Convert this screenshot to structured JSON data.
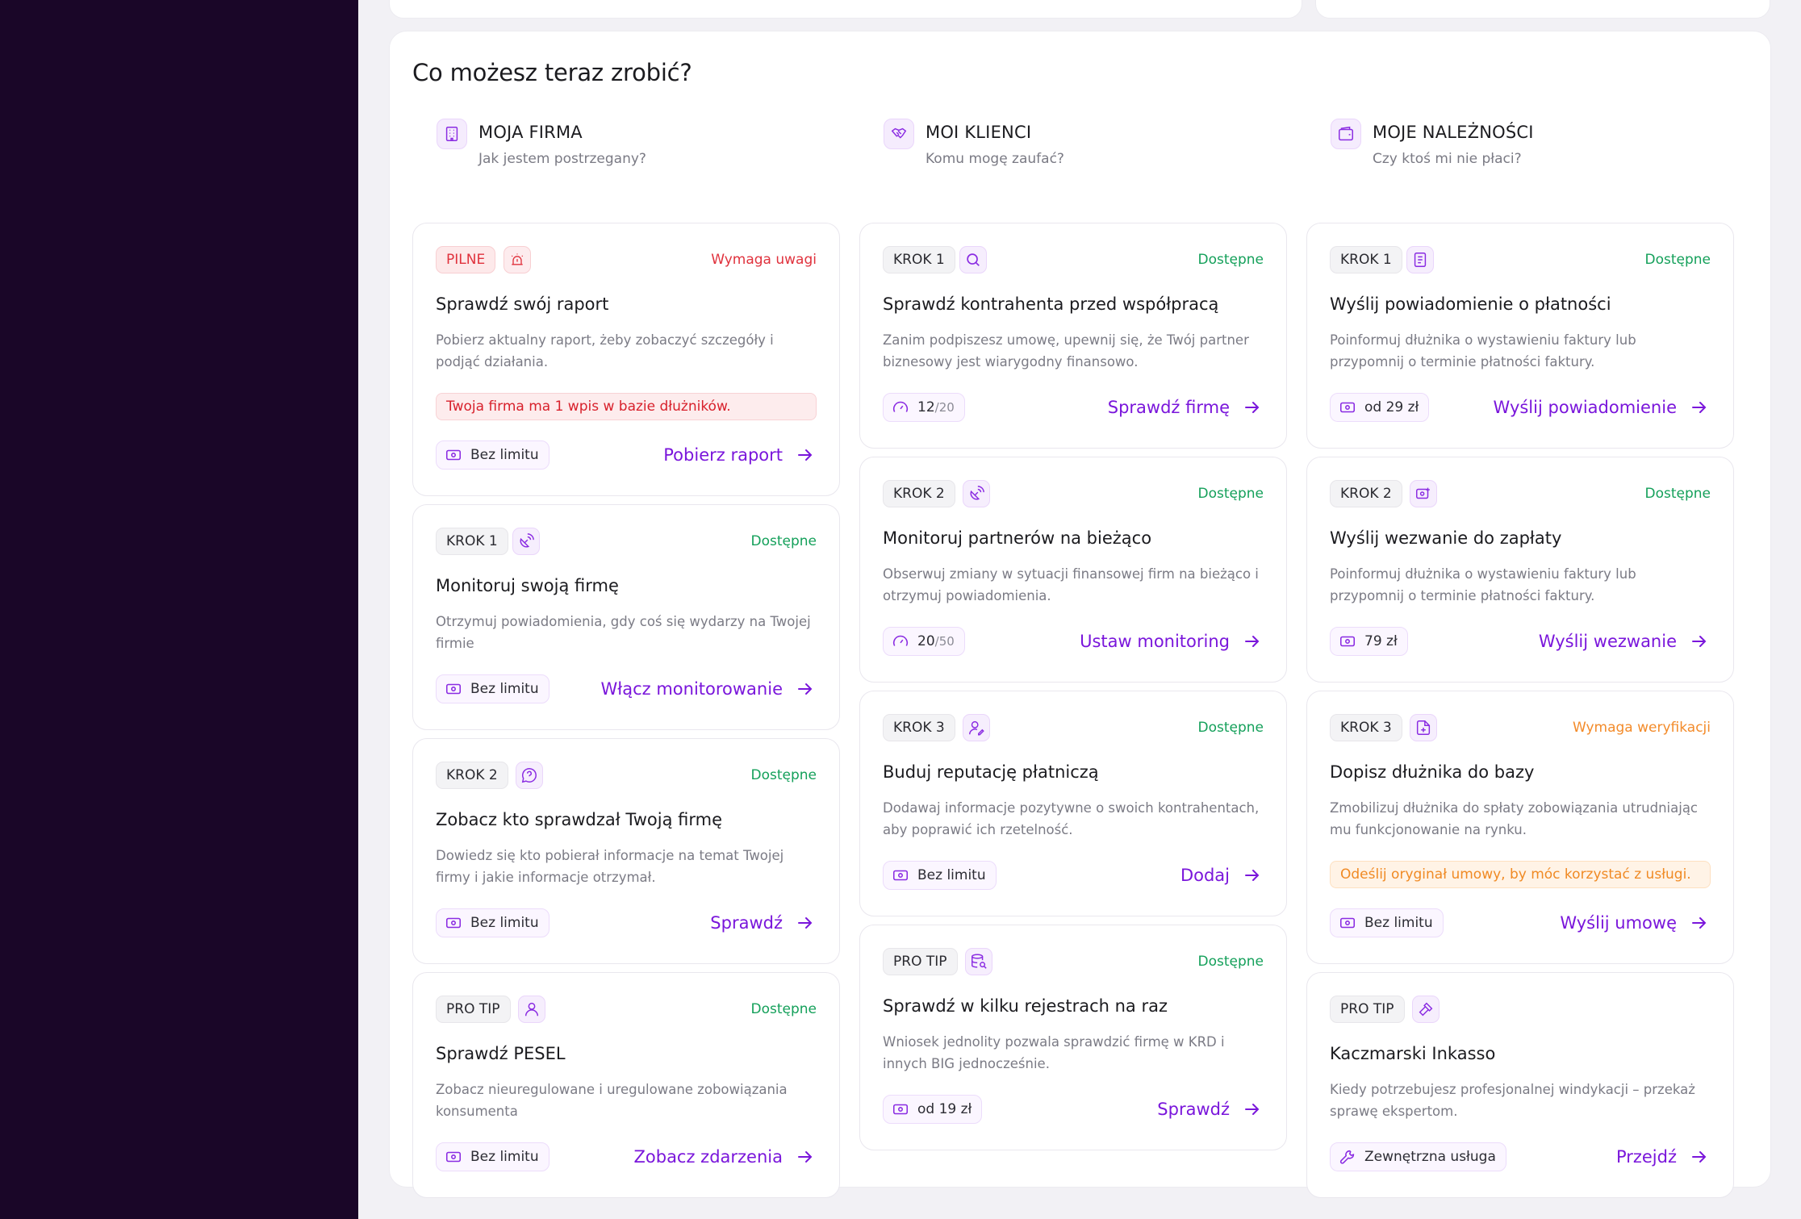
{
  "panel_title": "Co możesz teraz zrobić?",
  "colors": {
    "accent": "#7a16db",
    "green": "#14a05a",
    "red": "#e0323d",
    "orange": "#f38b2a",
    "rail": "#1a0628"
  },
  "columns": [
    {
      "title": "MOJA FIRMA",
      "subtitle": "Jak jestem postrzegany?",
      "icon": "building-icon",
      "cards": [
        {
          "tag": "PILNE",
          "tag_icon": "alarm-icon",
          "status": "Wymaga uwagi",
          "title": "Sprawdź swój raport",
          "desc": "Pobierz aktualny raport, żeby zobaczyć szczegóły i podjąć działania.",
          "alert": "Twoja firma ma 1 wpis w bazie dłużników.",
          "price": "Bez limitu",
          "price_icon": "money-icon",
          "action": "Pobierz raport"
        },
        {
          "tag": "KROK 1",
          "tag_icon": "satellite-dish-icon",
          "status": "Dostępne",
          "title": "Monitoruj swoją firmę",
          "desc": "Otrzymuj powiadomienia, gdy coś się wydarzy na Twojej firmie",
          "price": "Bez limitu",
          "price_icon": "money-icon",
          "action": "Włącz monitorowanie"
        },
        {
          "tag": "KROK 2",
          "tag_icon": "question-bubble-icon",
          "status": "Dostępne",
          "title": "Zobacz kto sprawdzał Twoją firmę",
          "desc": "Dowiedz się kto pobierał informacje na temat Twojej firmy i jakie informacje otrzymał.",
          "price": "Bez limitu",
          "price_icon": "money-icon",
          "action": "Sprawdź"
        },
        {
          "tag": "PRO TIP",
          "tag_icon": "person-icon",
          "status": "Dostępne",
          "title": "Sprawdź PESEL",
          "desc": "Zobacz nieuregulowane i uregulowane zobowiązania konsumenta",
          "price": "Bez limitu",
          "price_icon": "money-icon",
          "action": "Zobacz zdarzenia"
        }
      ]
    },
    {
      "title": "MOI KLIENCI",
      "subtitle": "Komu mogę zaufać?",
      "icon": "handshake-icon",
      "cards": [
        {
          "tag": "KROK 1",
          "tag_icon": "search-icon",
          "status": "Dostępne",
          "title": "Sprawdź kontrahenta przed współpracą",
          "desc": "Zanim podpiszesz umowę, upewnij się, że Twój partner biznesowy jest wiarygodny finansowo.",
          "price": "12",
          "price_suffix": "/20",
          "price_icon": "gauge-icon",
          "action": "Sprawdź firmę"
        },
        {
          "tag": "KROK 2",
          "tag_icon": "satellite-dish-icon",
          "status": "Dostępne",
          "title": "Monitoruj partnerów na bieżąco",
          "desc": "Obserwuj zmiany w sytuacji finansowej firm na bieżąco i otrzymuj powiadomienia.",
          "price": "20",
          "price_suffix": "/50",
          "price_icon": "gauge-icon",
          "action": "Ustaw monitoring"
        },
        {
          "tag": "KROK 3",
          "tag_icon": "user-edit-icon",
          "status": "Dostępne",
          "title": "Buduj reputację płatniczą",
          "desc": "Dodawaj informacje pozytywne o swoich kontrahentach, aby poprawić ich rzetelność.",
          "price": "Bez limitu",
          "price_icon": "money-icon",
          "action": "Dodaj"
        },
        {
          "tag": "PRO TIP",
          "tag_icon": "database-search-icon",
          "status": "Dostępne",
          "title": "Sprawdź w kilku rejestrach na raz",
          "desc": "Wniosek jednolity pozwala sprawdzić firmę w KRD i innych BIG jednocześnie.",
          "price": "od 19 zł",
          "price_icon": "money-icon",
          "action": "Sprawdź"
        }
      ]
    },
    {
      "title": "MOJE NALEŻNOŚCI",
      "subtitle": "Czy ktoś mi nie płaci?",
      "icon": "wallet-icon",
      "cards": [
        {
          "tag": "KROK 1",
          "tag_icon": "document-icon",
          "status": "Dostępne",
          "title": "Wyślij powiadomienie o płatności",
          "desc": "Poinformuj dłużnika o wystawieniu faktury lub przypomnij o terminie płatności faktury.",
          "price": "od 29 zł",
          "price_icon": "money-icon",
          "action": "Wyślij powiadomienie"
        },
        {
          "tag": "KROK 2",
          "tag_icon": "money-send-icon",
          "status": "Dostępne",
          "title": "Wyślij wezwanie do zapłaty",
          "desc": "Poinformuj dłużnika o wystawieniu faktury lub przypomnij o terminie płatności faktury.",
          "price": "79 zł",
          "price_icon": "money-icon",
          "action": "Wyślij wezwanie"
        },
        {
          "tag": "KROK 3",
          "tag_icon": "file-add-icon",
          "status": "Wymaga weryfikacji",
          "title": "Dopisz dłużnika do bazy",
          "desc": "Zmobilizuj dłużnika do spłaty zobowiązania utrudniając mu funkcjonowanie na rynku.",
          "alert": "Odeślij oryginał umowy, by móc korzystać z usługi.",
          "price": "Bez limitu",
          "price_icon": "money-icon",
          "action": "Wyślij umowę"
        },
        {
          "tag": "PRO TIP",
          "tag_icon": "gavel-icon",
          "status": "",
          "title": "Kaczmarski Inkasso",
          "desc": "Kiedy potrzebujesz profesjonalnej windykacji – przekaż sprawę ekspertom.",
          "price": "Zewnętrzna usługa",
          "price_icon": "wrench-icon",
          "action": "Przejdź"
        }
      ]
    }
  ]
}
